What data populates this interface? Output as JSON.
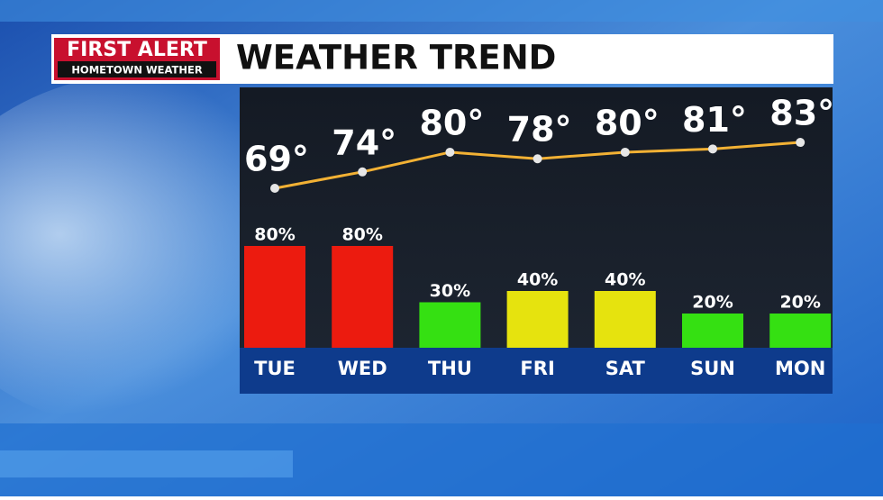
{
  "header": {
    "logo_top": "FIRST ALERT",
    "logo_bottom": "HOMETOWN WEATHER"
  },
  "chart_data": [
    {
      "type": "line",
      "title": "WEATHER TREND",
      "values": [
        69,
        74,
        80,
        78,
        80,
        81,
        83
      ],
      "value_labels": [
        "69°",
        "74°",
        "80°",
        "78°",
        "80°",
        "81°",
        "83°"
      ],
      "color": "#f2b134"
    },
    {
      "type": "bar",
      "categories": [
        "TUE",
        "WED",
        "THU",
        "FRI",
        "SAT",
        "SUN",
        "MON"
      ],
      "values": [
        80,
        80,
        30,
        40,
        40,
        20,
        20
      ],
      "value_labels": [
        "80%",
        "80%",
        "30%",
        "40%",
        "40%",
        "20%",
        "20%"
      ],
      "colors": [
        "#ec1b0f",
        "#ec1b0f",
        "#35e012",
        "#e6e30e",
        "#e6e30e",
        "#35e012",
        "#35e012"
      ]
    }
  ]
}
